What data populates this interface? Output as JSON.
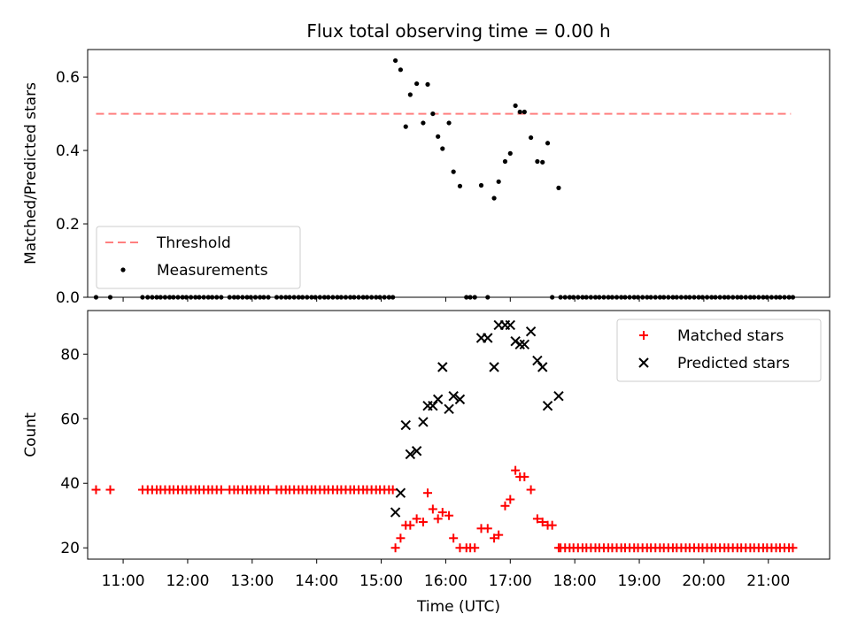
{
  "chart_data": {
    "title": "Flux total observing time = 0.00 h",
    "xlabel": "Time (UTC)",
    "xlim": [
      10.45,
      21.95
    ],
    "x_ticks": [
      11,
      12,
      13,
      14,
      15,
      16,
      17,
      18,
      19,
      20,
      21
    ],
    "x_tick_labels": [
      "11:00",
      "12:00",
      "13:00",
      "14:00",
      "15:00",
      "16:00",
      "17:00",
      "18:00",
      "19:00",
      "20:00",
      "21:00"
    ],
    "panels": [
      {
        "type": "scatter",
        "ylabel": "Matched/Predicted stars",
        "ylim": [
          0,
          0.675
        ],
        "y_ticks": [
          0.0,
          0.2,
          0.4,
          0.6
        ],
        "y_tick_labels": [
          "0.0",
          "0.2",
          "0.4",
          "0.6"
        ],
        "legend_position": "lower-left",
        "threshold": {
          "name": "Threshold",
          "value": 0.5,
          "x_range": [
            10.58,
            21.35
          ],
          "color": "#ff7f7f"
        },
        "series": [
          {
            "name": "Measurements",
            "color": "#000000",
            "marker": "dot",
            "zero_x": [
              10.58,
              10.8,
              11.3,
              11.38,
              11.45,
              11.52,
              11.58,
              11.65,
              11.72,
              11.78,
              11.85,
              11.92,
              11.98,
              12.05,
              12.12,
              12.18,
              12.25,
              12.32,
              12.38,
              12.45,
              12.52,
              12.65,
              12.72,
              12.78,
              12.85,
              12.92,
              12.98,
              13.05,
              13.12,
              13.18,
              13.25,
              13.38,
              13.45,
              13.52,
              13.58,
              13.65,
              13.72,
              13.78,
              13.85,
              13.92,
              13.98,
              14.05,
              14.12,
              14.18,
              14.25,
              14.32,
              14.38,
              14.45,
              14.52,
              14.58,
              14.65,
              14.72,
              14.78,
              14.85,
              14.92,
              14.98,
              15.05,
              15.12,
              15.18,
              16.32,
              16.38,
              16.45,
              16.65,
              17.65,
              17.78,
              17.85,
              17.92,
              17.98,
              18.05,
              18.12,
              18.18,
              18.25,
              18.32,
              18.38,
              18.45,
              18.52,
              18.58,
              18.65,
              18.72,
              18.78,
              18.85,
              18.92,
              18.98,
              19.05,
              19.12,
              19.18,
              19.25,
              19.32,
              19.38,
              19.45,
              19.52,
              19.58,
              19.65,
              19.72,
              19.78,
              19.85,
              19.92,
              19.98,
              20.05,
              20.12,
              20.18,
              20.25,
              20.32,
              20.38,
              20.45,
              20.52,
              20.58,
              20.65,
              20.72,
              20.78,
              20.85,
              20.92,
              20.98,
              21.05,
              21.12,
              21.18,
              21.25,
              21.32,
              21.38
            ],
            "points": [
              [
                15.22,
                0.645
              ],
              [
                15.3,
                0.62
              ],
              [
                15.38,
                0.465
              ],
              [
                15.45,
                0.552
              ],
              [
                15.55,
                0.582
              ],
              [
                15.65,
                0.475
              ],
              [
                15.72,
                0.58
              ],
              [
                15.8,
                0.5
              ],
              [
                15.88,
                0.438
              ],
              [
                15.95,
                0.405
              ],
              [
                16.05,
                0.475
              ],
              [
                16.12,
                0.342
              ],
              [
                16.22,
                0.303
              ],
              [
                16.55,
                0.305
              ],
              [
                16.75,
                0.27
              ],
              [
                16.82,
                0.315
              ],
              [
                16.92,
                0.37
              ],
              [
                17.0,
                0.392
              ],
              [
                17.08,
                0.522
              ],
              [
                17.15,
                0.505
              ],
              [
                17.22,
                0.505
              ],
              [
                17.32,
                0.435
              ],
              [
                17.42,
                0.37
              ],
              [
                17.5,
                0.368
              ],
              [
                17.58,
                0.42
              ],
              [
                17.75,
                0.298
              ]
            ]
          }
        ]
      },
      {
        "type": "scatter",
        "ylabel": "Count",
        "ylim": [
          16.5,
          93.5
        ],
        "y_ticks": [
          20,
          40,
          60,
          80
        ],
        "y_tick_labels": [
          "20",
          "40",
          "60",
          "80"
        ],
        "legend_position": "upper-right",
        "series": [
          {
            "name": "Matched stars",
            "color": "#ff0000",
            "marker": "plus",
            "const_x": [
              10.58,
              10.8,
              11.3,
              11.38,
              11.45,
              11.52,
              11.58,
              11.65,
              11.72,
              11.78,
              11.85,
              11.92,
              11.98,
              12.05,
              12.12,
              12.18,
              12.25,
              12.32,
              12.38,
              12.45,
              12.52,
              12.65,
              12.72,
              12.78,
              12.85,
              12.92,
              12.98,
              13.05,
              13.12,
              13.18,
              13.25,
              13.38,
              13.45,
              13.52,
              13.58,
              13.65,
              13.72,
              13.78,
              13.85,
              13.92,
              13.98,
              14.05,
              14.12,
              14.18,
              14.25,
              14.32,
              14.38,
              14.45,
              14.52,
              14.58,
              14.65,
              14.72,
              14.78,
              14.85,
              14.92,
              14.98,
              15.05,
              15.12,
              15.18
            ],
            "const_y": 38,
            "low_x": [
              17.78,
              17.85,
              17.92,
              17.98,
              18.05,
              18.12,
              18.18,
              18.25,
              18.32,
              18.38,
              18.45,
              18.52,
              18.58,
              18.65,
              18.72,
              18.78,
              18.85,
              18.92,
              18.98,
              19.05,
              19.12,
              19.18,
              19.25,
              19.32,
              19.38,
              19.45,
              19.52,
              19.58,
              19.65,
              19.72,
              19.78,
              19.85,
              19.92,
              19.98,
              20.05,
              20.12,
              20.18,
              20.25,
              20.32,
              20.38,
              20.45,
              20.52,
              20.58,
              20.65,
              20.72,
              20.78,
              20.85,
              20.92,
              20.98,
              21.05,
              21.12,
              21.18,
              21.25,
              21.32,
              21.38
            ],
            "low_y": 20,
            "points": [
              [
                15.22,
                20
              ],
              [
                15.3,
                23
              ],
              [
                15.38,
                27
              ],
              [
                15.45,
                27
              ],
              [
                15.55,
                29
              ],
              [
                15.65,
                28
              ],
              [
                15.72,
                37
              ],
              [
                15.8,
                32
              ],
              [
                15.88,
                29
              ],
              [
                15.95,
                31
              ],
              [
                16.05,
                30
              ],
              [
                16.12,
                23
              ],
              [
                16.22,
                20
              ],
              [
                16.32,
                20
              ],
              [
                16.38,
                20
              ],
              [
                16.45,
                20
              ],
              [
                16.55,
                26
              ],
              [
                16.65,
                26
              ],
              [
                16.75,
                23
              ],
              [
                16.82,
                24
              ],
              [
                16.92,
                33
              ],
              [
                17.0,
                35
              ],
              [
                17.08,
                44
              ],
              [
                17.15,
                42
              ],
              [
                17.22,
                42
              ],
              [
                17.32,
                38
              ],
              [
                17.42,
                29
              ],
              [
                17.5,
                28
              ],
              [
                17.58,
                27
              ],
              [
                17.65,
                27
              ],
              [
                17.75,
                20
              ]
            ]
          },
          {
            "name": "Predicted stars",
            "color": "#000000",
            "marker": "x",
            "points": [
              [
                15.22,
                31
              ],
              [
                15.3,
                37
              ],
              [
                15.38,
                58
              ],
              [
                15.45,
                49
              ],
              [
                15.55,
                50
              ],
              [
                15.65,
                59
              ],
              [
                15.72,
                64
              ],
              [
                15.8,
                64
              ],
              [
                15.88,
                66
              ],
              [
                15.95,
                76
              ],
              [
                16.05,
                63
              ],
              [
                16.12,
                67
              ],
              [
                16.22,
                66
              ],
              [
                16.55,
                85
              ],
              [
                16.65,
                85
              ],
              [
                16.75,
                76
              ],
              [
                16.82,
                89
              ],
              [
                16.92,
                89
              ],
              [
                17.0,
                89
              ],
              [
                17.08,
                84
              ],
              [
                17.15,
                83
              ],
              [
                17.22,
                83
              ],
              [
                17.32,
                87
              ],
              [
                17.42,
                78
              ],
              [
                17.5,
                76
              ],
              [
                17.58,
                64
              ],
              [
                17.75,
                67
              ]
            ]
          }
        ]
      }
    ]
  }
}
